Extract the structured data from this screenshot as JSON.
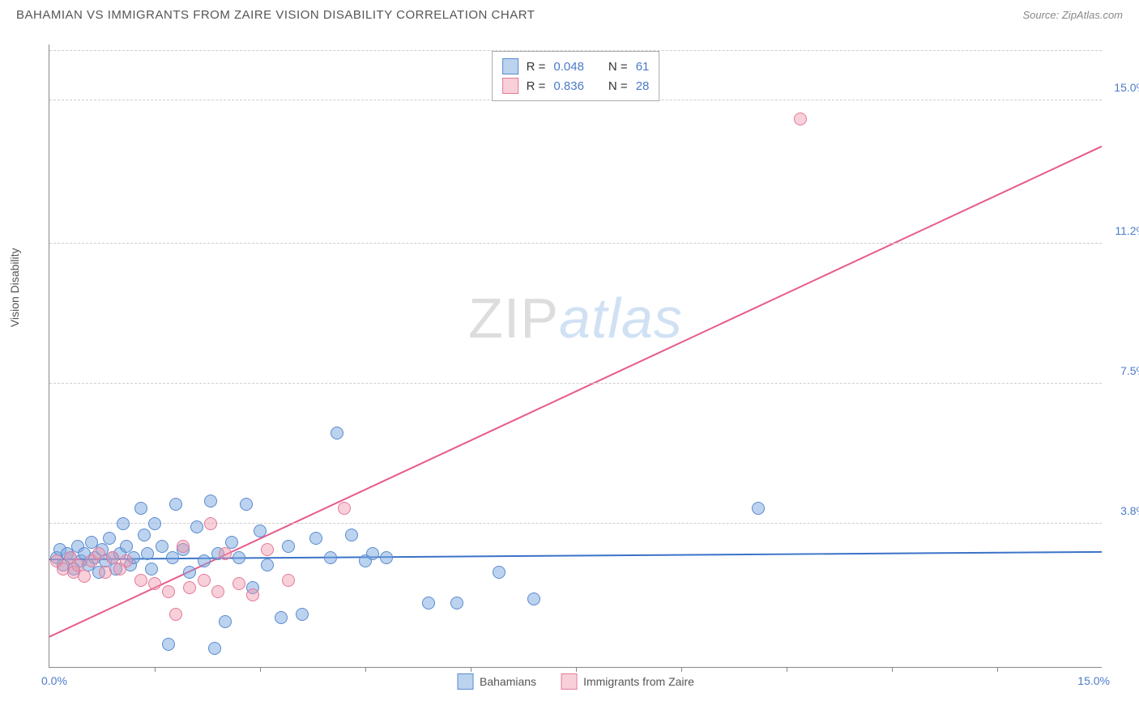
{
  "header": {
    "title": "BAHAMIAN VS IMMIGRANTS FROM ZAIRE VISION DISABILITY CORRELATION CHART",
    "source": "Source: ZipAtlas.com"
  },
  "chart": {
    "type": "scatter",
    "ylabel": "Vision Disability",
    "watermark_a": "ZIP",
    "watermark_b": "atlas",
    "background_color": "#ffffff",
    "grid_color": "#cccccc",
    "axis_color": "#888888",
    "xlim": [
      0,
      15
    ],
    "ylim": [
      0,
      16.5
    ],
    "xtick_left": "0.0%",
    "xtick_right": "15.0%",
    "xtick_positions": [
      1.5,
      3.0,
      4.5,
      6.0,
      7.5,
      9.0,
      10.5,
      12.0,
      13.5
    ],
    "yticks": [
      {
        "value": 3.8,
        "label": "3.8%"
      },
      {
        "value": 7.5,
        "label": "7.5%"
      },
      {
        "value": 11.2,
        "label": "11.2%"
      },
      {
        "value": 15.0,
        "label": "15.0%"
      }
    ],
    "series": [
      {
        "name": "Bahamians",
        "color_fill": "rgba(122,168,224,0.5)",
        "color_border": "#5a8acf",
        "line_color": "#3a72c8",
        "R": "0.048",
        "N": "61",
        "regression": {
          "x1": 0,
          "y1": 2.85,
          "x2": 15,
          "y2": 3.05
        },
        "points": [
          [
            0.1,
            2.9
          ],
          [
            0.15,
            3.1
          ],
          [
            0.2,
            2.7
          ],
          [
            0.25,
            3.0
          ],
          [
            0.3,
            2.9
          ],
          [
            0.35,
            2.6
          ],
          [
            0.4,
            3.2
          ],
          [
            0.45,
            2.8
          ],
          [
            0.5,
            3.0
          ],
          [
            0.55,
            2.7
          ],
          [
            0.6,
            3.3
          ],
          [
            0.65,
            2.9
          ],
          [
            0.7,
            2.5
          ],
          [
            0.75,
            3.1
          ],
          [
            0.8,
            2.8
          ],
          [
            0.85,
            3.4
          ],
          [
            0.9,
            2.9
          ],
          [
            0.95,
            2.6
          ],
          [
            1.0,
            3.0
          ],
          [
            1.05,
            3.8
          ],
          [
            1.1,
            3.2
          ],
          [
            1.15,
            2.7
          ],
          [
            1.2,
            2.9
          ],
          [
            1.3,
            4.2
          ],
          [
            1.35,
            3.5
          ],
          [
            1.4,
            3.0
          ],
          [
            1.45,
            2.6
          ],
          [
            1.5,
            3.8
          ],
          [
            1.6,
            3.2
          ],
          [
            1.7,
            0.6
          ],
          [
            1.75,
            2.9
          ],
          [
            1.8,
            4.3
          ],
          [
            1.9,
            3.1
          ],
          [
            2.0,
            2.5
          ],
          [
            2.1,
            3.7
          ],
          [
            2.2,
            2.8
          ],
          [
            2.3,
            4.4
          ],
          [
            2.35,
            0.5
          ],
          [
            2.4,
            3.0
          ],
          [
            2.5,
            1.2
          ],
          [
            2.6,
            3.3
          ],
          [
            2.7,
            2.9
          ],
          [
            2.8,
            4.3
          ],
          [
            2.9,
            2.1
          ],
          [
            3.0,
            3.6
          ],
          [
            3.1,
            2.7
          ],
          [
            3.3,
            1.3
          ],
          [
            3.4,
            3.2
          ],
          [
            3.6,
            1.4
          ],
          [
            3.8,
            3.4
          ],
          [
            4.0,
            2.9
          ],
          [
            4.1,
            6.2
          ],
          [
            4.3,
            3.5
          ],
          [
            4.5,
            2.8
          ],
          [
            4.6,
            3.0
          ],
          [
            4.8,
            2.9
          ],
          [
            5.4,
            1.7
          ],
          [
            5.8,
            1.7
          ],
          [
            6.4,
            2.5
          ],
          [
            6.9,
            1.8
          ],
          [
            10.1,
            4.2
          ]
        ]
      },
      {
        "name": "Immigrants from Zaire",
        "color_fill": "rgba(240,150,170,0.45)",
        "color_border": "#e37a9a",
        "line_color": "#e85a8a",
        "R": "0.836",
        "N": "28",
        "regression": {
          "x1": 0,
          "y1": 0.8,
          "x2": 15,
          "y2": 13.8
        },
        "points": [
          [
            0.1,
            2.8
          ],
          [
            0.2,
            2.6
          ],
          [
            0.3,
            2.9
          ],
          [
            0.35,
            2.5
          ],
          [
            0.4,
            2.7
          ],
          [
            0.5,
            2.4
          ],
          [
            0.6,
            2.8
          ],
          [
            0.7,
            3.0
          ],
          [
            0.8,
            2.5
          ],
          [
            0.9,
            2.9
          ],
          [
            1.0,
            2.6
          ],
          [
            1.1,
            2.8
          ],
          [
            1.3,
            2.3
          ],
          [
            1.5,
            2.2
          ],
          [
            1.7,
            2.0
          ],
          [
            1.8,
            1.4
          ],
          [
            1.9,
            3.2
          ],
          [
            2.0,
            2.1
          ],
          [
            2.2,
            2.3
          ],
          [
            2.3,
            3.8
          ],
          [
            2.4,
            2.0
          ],
          [
            2.5,
            3.0
          ],
          [
            2.7,
            2.2
          ],
          [
            2.9,
            1.9
          ],
          [
            3.1,
            3.1
          ],
          [
            3.4,
            2.3
          ],
          [
            4.2,
            4.2
          ],
          [
            10.7,
            14.5
          ]
        ]
      }
    ],
    "legend_top": [
      {
        "swatch_fill": "rgba(122,168,224,0.5)",
        "swatch_border": "#5a8acf",
        "R_label": "R =",
        "R": "0.048",
        "N_label": "N =",
        "N": "61"
      },
      {
        "swatch_fill": "rgba(240,150,170,0.45)",
        "swatch_border": "#e37a9a",
        "R_label": "R =",
        "R": "0.836",
        "N_label": "N =",
        "N": "28"
      }
    ],
    "legend_bottom": [
      {
        "swatch_fill": "rgba(122,168,224,0.5)",
        "swatch_border": "#5a8acf",
        "label": "Bahamians"
      },
      {
        "swatch_fill": "rgba(240,150,170,0.45)",
        "swatch_border": "#e37a9a",
        "label": "Immigrants from Zaire"
      }
    ]
  }
}
